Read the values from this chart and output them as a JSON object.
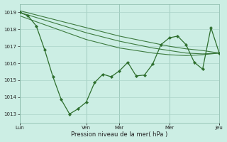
{
  "bg_color": "#cceee4",
  "grid_color": "#aad4c8",
  "line_color": "#2d6e2d",
  "ylim": [
    1012.5,
    1019.5
  ],
  "yticks": [
    1013,
    1014,
    1015,
    1016,
    1017,
    1018,
    1019
  ],
  "xlabel": "Pression niveau de la mer( hPa )",
  "xtick_labels": [
    "Lun",
    "Ven",
    "Mar",
    "Mer",
    "Jeu"
  ],
  "xtick_positions": [
    0,
    8,
    12,
    18,
    24
  ],
  "xlim": [
    0,
    24
  ],
  "smooth1_x": [
    0,
    2,
    4,
    6,
    8,
    10,
    12,
    14,
    16,
    18,
    20,
    22,
    24
  ],
  "smooth1_y": [
    1019.1,
    1018.85,
    1018.6,
    1018.35,
    1018.1,
    1017.85,
    1017.6,
    1017.4,
    1017.2,
    1017.0,
    1016.85,
    1016.75,
    1016.6
  ],
  "smooth2_x": [
    0,
    2,
    4,
    6,
    8,
    10,
    12,
    14,
    16,
    18,
    20,
    22,
    24
  ],
  "smooth2_y": [
    1019.0,
    1018.7,
    1018.4,
    1018.1,
    1017.8,
    1017.55,
    1017.3,
    1017.1,
    1016.9,
    1016.75,
    1016.6,
    1016.55,
    1016.6
  ],
  "smooth3_x": [
    0,
    2,
    4,
    6,
    8,
    10,
    12,
    14,
    16,
    18,
    20,
    22,
    24
  ],
  "smooth3_y": [
    1018.8,
    1018.45,
    1018.1,
    1017.75,
    1017.4,
    1017.15,
    1016.9,
    1016.75,
    1016.6,
    1016.5,
    1016.45,
    1016.5,
    1016.6
  ],
  "main_x": [
    0,
    1,
    2,
    3,
    4,
    5,
    6,
    7,
    8,
    9,
    10,
    11,
    12,
    13,
    14,
    15,
    16,
    17,
    18,
    19,
    20,
    21,
    22,
    23,
    24
  ],
  "main_y": [
    1019.0,
    1018.8,
    1018.2,
    1016.8,
    1015.2,
    1013.85,
    1013.0,
    1013.3,
    1013.7,
    1014.85,
    1015.35,
    1015.2,
    1015.55,
    1016.05,
    1015.25,
    1015.3,
    1015.95,
    1017.1,
    1017.5,
    1017.6,
    1017.1,
    1016.05,
    1015.65,
    1018.1,
    1016.6
  ]
}
